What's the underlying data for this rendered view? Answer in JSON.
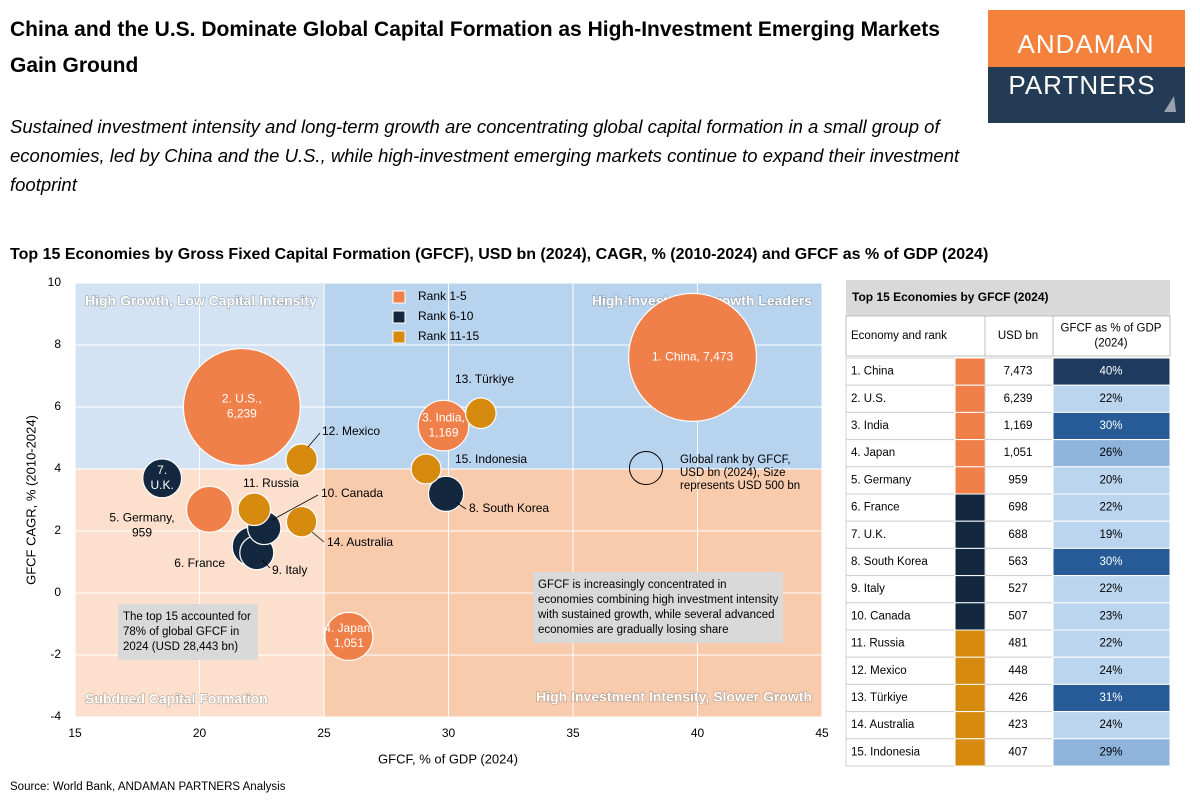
{
  "header": {
    "title": "China and the U.S. Dominate Global Capital Formation as High-Investment Emerging Markets Gain Ground",
    "subtitle": "Sustained investment intensity and long-term growth are concentrating global capital formation in a small group of economies, led by China and the U.S., while high-investment emerging markets continue to expand their investment footprint",
    "logo_top": "ANDAMAN",
    "logo_bottom": "PARTNERS"
  },
  "chart_data": {
    "type": "bubble",
    "title": "Top 15 Economies by Gross Fixed Capital Formation (GFCF), USD bn (2024), CAGR, % (2010-2024) and GFCF as % of GDP (2024)",
    "xlabel": "GFCF, % of GDP (2024)",
    "ylabel": "GFCF CAGR, % (2010-2024)",
    "xlim": [
      15,
      45
    ],
    "ylim": [
      -4,
      10
    ],
    "xticks": [
      15,
      20,
      25,
      30,
      35,
      40,
      45
    ],
    "yticks": [
      -4,
      -2,
      0,
      2,
      4,
      6,
      8,
      10
    ],
    "grid": true,
    "quadrant_x": 25,
    "quadrant_y": 4,
    "quadrant_labels": [
      "High Growth, Low Capital Intensity",
      "High-Investment Growth Leaders",
      "Subdued Capital Formation",
      "High Investment Intensity, Slower Growth"
    ],
    "series": [
      {
        "name": "Rank 1-5",
        "color": "#f0804a",
        "x": [
          39.8,
          21.7,
          29.8,
          26.0,
          20.4
        ],
        "values": [
          7.6,
          6.0,
          5.4,
          -1.4,
          2.7
        ],
        "sizes": [
          7473,
          6239,
          1169,
          1051,
          959
        ],
        "labels": [
          [
            "1. China, 7,473"
          ],
          [
            "2. U.S.,",
            "6,239"
          ],
          [
            "3. India,",
            "1,169"
          ],
          [
            "4. Japan,",
            "1,051"
          ],
          [
            "5. Germany,",
            "959"
          ]
        ]
      },
      {
        "name": "Rank 6-10",
        "color": "#13283f",
        "x": [
          22.1,
          18.5,
          29.9,
          22.3,
          22.6
        ],
        "values": [
          1.5,
          3.7,
          3.2,
          1.3,
          2.1
        ],
        "sizes": [
          698,
          688,
          563,
          527,
          507
        ],
        "labels": [
          [
            "6. France"
          ],
          [
            "7.",
            "U.K."
          ],
          [
            "8. South Korea"
          ],
          [
            "9. Italy"
          ],
          [
            "10. Canada"
          ]
        ]
      },
      {
        "name": "Rank 11-15",
        "color": "#d68a0e",
        "x": [
          22.2,
          24.1,
          31.3,
          24.1,
          29.1
        ],
        "values": [
          2.7,
          4.3,
          5.8,
          2.3,
          4.0
        ],
        "sizes": [
          481,
          448,
          426,
          423,
          407
        ],
        "labels": [
          [
            "11. Russia"
          ],
          [
            "12. Mexico"
          ],
          [
            "13. Türkiye"
          ],
          [
            "14. Australia"
          ],
          [
            "15. Indonesia"
          ]
        ]
      }
    ],
    "reference_bubble": {
      "size": 500,
      "label": [
        "Global rank by GFCF,",
        "USD bn (2024), Size",
        "represents USD 500 bn"
      ]
    },
    "annotations": [
      [
        "The top 15 accounted for",
        "78% of global GFCF in",
        "2024 (USD 28,443 bn)"
      ],
      [
        "GFCF is increasingly concentrated in",
        "economies combining high investment intensity",
        "with sustained growth, while several advanced",
        "economies are gradually losing share"
      ]
    ]
  },
  "table": {
    "title": "Top 15 Economies by GFCF (2024)",
    "headers": [
      [
        "Economy and rank"
      ],
      [
        "USD bn"
      ],
      [
        "GFCF as % of GDP",
        "(2024)"
      ]
    ],
    "rows": [
      [
        "1. China",
        "7,473",
        "40%"
      ],
      [
        "2. U.S.",
        "6,239",
        "22%"
      ],
      [
        "3. India",
        "1,169",
        "30%"
      ],
      [
        "4. Japan",
        "1,051",
        "26%"
      ],
      [
        "5. Germany",
        "959",
        "20%"
      ],
      [
        "6. France",
        "698",
        "22%"
      ],
      [
        "7. U.K.",
        "688",
        "19%"
      ],
      [
        "8. South Korea",
        "563",
        "30%"
      ],
      [
        "9. Italy",
        "527",
        "22%"
      ],
      [
        "10. Canada",
        "507",
        "23%"
      ],
      [
        "11. Russia",
        "481",
        "22%"
      ],
      [
        "12. Mexico",
        "448",
        "24%"
      ],
      [
        "13. Türkiye",
        "426",
        "31%"
      ],
      [
        "14. Australia",
        "423",
        "24%"
      ],
      [
        "15. Indonesia",
        "407",
        "29%"
      ]
    ]
  },
  "source": "Source: World Bank, ANDAMAN PARTNERS Analysis"
}
